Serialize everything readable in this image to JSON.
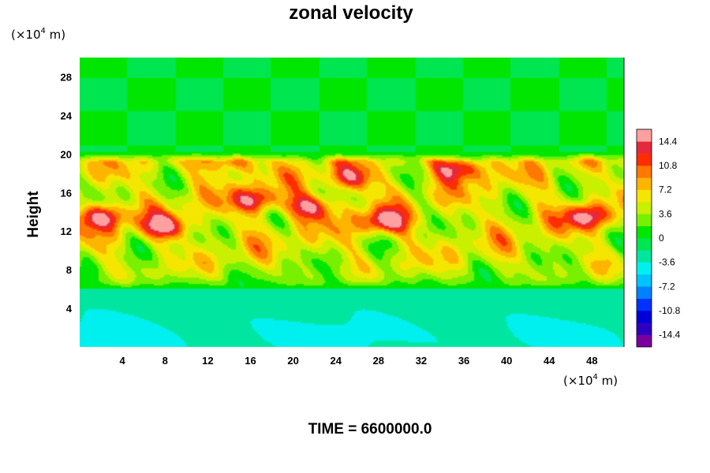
{
  "chart_data": {
    "type": "heatmap",
    "title": "zonal velocity",
    "ylabel": "Height",
    "xlabel": "",
    "x_unit": {
      "prefix": "(×10",
      "exp": "4",
      "suffix": " m)"
    },
    "y_unit": {
      "prefix": "(×10",
      "exp": "4",
      "suffix": " m)"
    },
    "xlim": [
      0,
      51
    ],
    "ylim": [
      0,
      30
    ],
    "x_ticks": [
      "4",
      "8",
      "12",
      "16",
      "20",
      "24",
      "28",
      "32",
      "36",
      "40",
      "44",
      "48"
    ],
    "x_tick_values": [
      4,
      8,
      12,
      16,
      20,
      24,
      28,
      32,
      36,
      40,
      44,
      48
    ],
    "y_ticks": [
      "4",
      "8",
      "12",
      "16",
      "20",
      "24",
      "28"
    ],
    "y_tick_values": [
      4,
      8,
      12,
      16,
      20,
      24,
      28
    ],
    "colorbar": {
      "labels": [
        "14.4",
        "10.8",
        "7.2",
        "3.6",
        "0",
        "-3.6",
        "-7.2",
        "-10.8",
        "-14.4"
      ],
      "label_values": [
        14.4,
        10.8,
        7.2,
        3.6,
        0,
        -3.6,
        -7.2,
        -10.8,
        -14.4
      ],
      "range": [
        -16.2,
        16.2
      ],
      "levels": 18
    },
    "field_description": {
      "upper_region": {
        "y_range": [
          20,
          30
        ],
        "value": 0
      },
      "jet_region": {
        "y_range": [
          6,
          20
        ],
        "typical_value_range": [
          3,
          16
        ]
      },
      "lower_region": {
        "y_range": [
          0,
          6
        ],
        "typical_value_range": [
          -6,
          -1
        ]
      },
      "max_cores": [
        {
          "x": 2,
          "y": 13.5,
          "value": 16
        },
        {
          "x": 8,
          "y": 12.5,
          "value": 15
        },
        {
          "x": 14,
          "y": 19.3,
          "value": 14
        },
        {
          "x": 16.5,
          "y": 15.2,
          "value": 15
        },
        {
          "x": 21.5,
          "y": 14.5,
          "value": 15
        },
        {
          "x": 25.5,
          "y": 17.5,
          "value": 14
        },
        {
          "x": 28.5,
          "y": 13,
          "value": 16
        },
        {
          "x": 35.5,
          "y": 18.5,
          "value": 16
        },
        {
          "x": 47.5,
          "y": 13.5,
          "value": 15
        }
      ]
    }
  },
  "time_label": "TIME = 6600000.0"
}
